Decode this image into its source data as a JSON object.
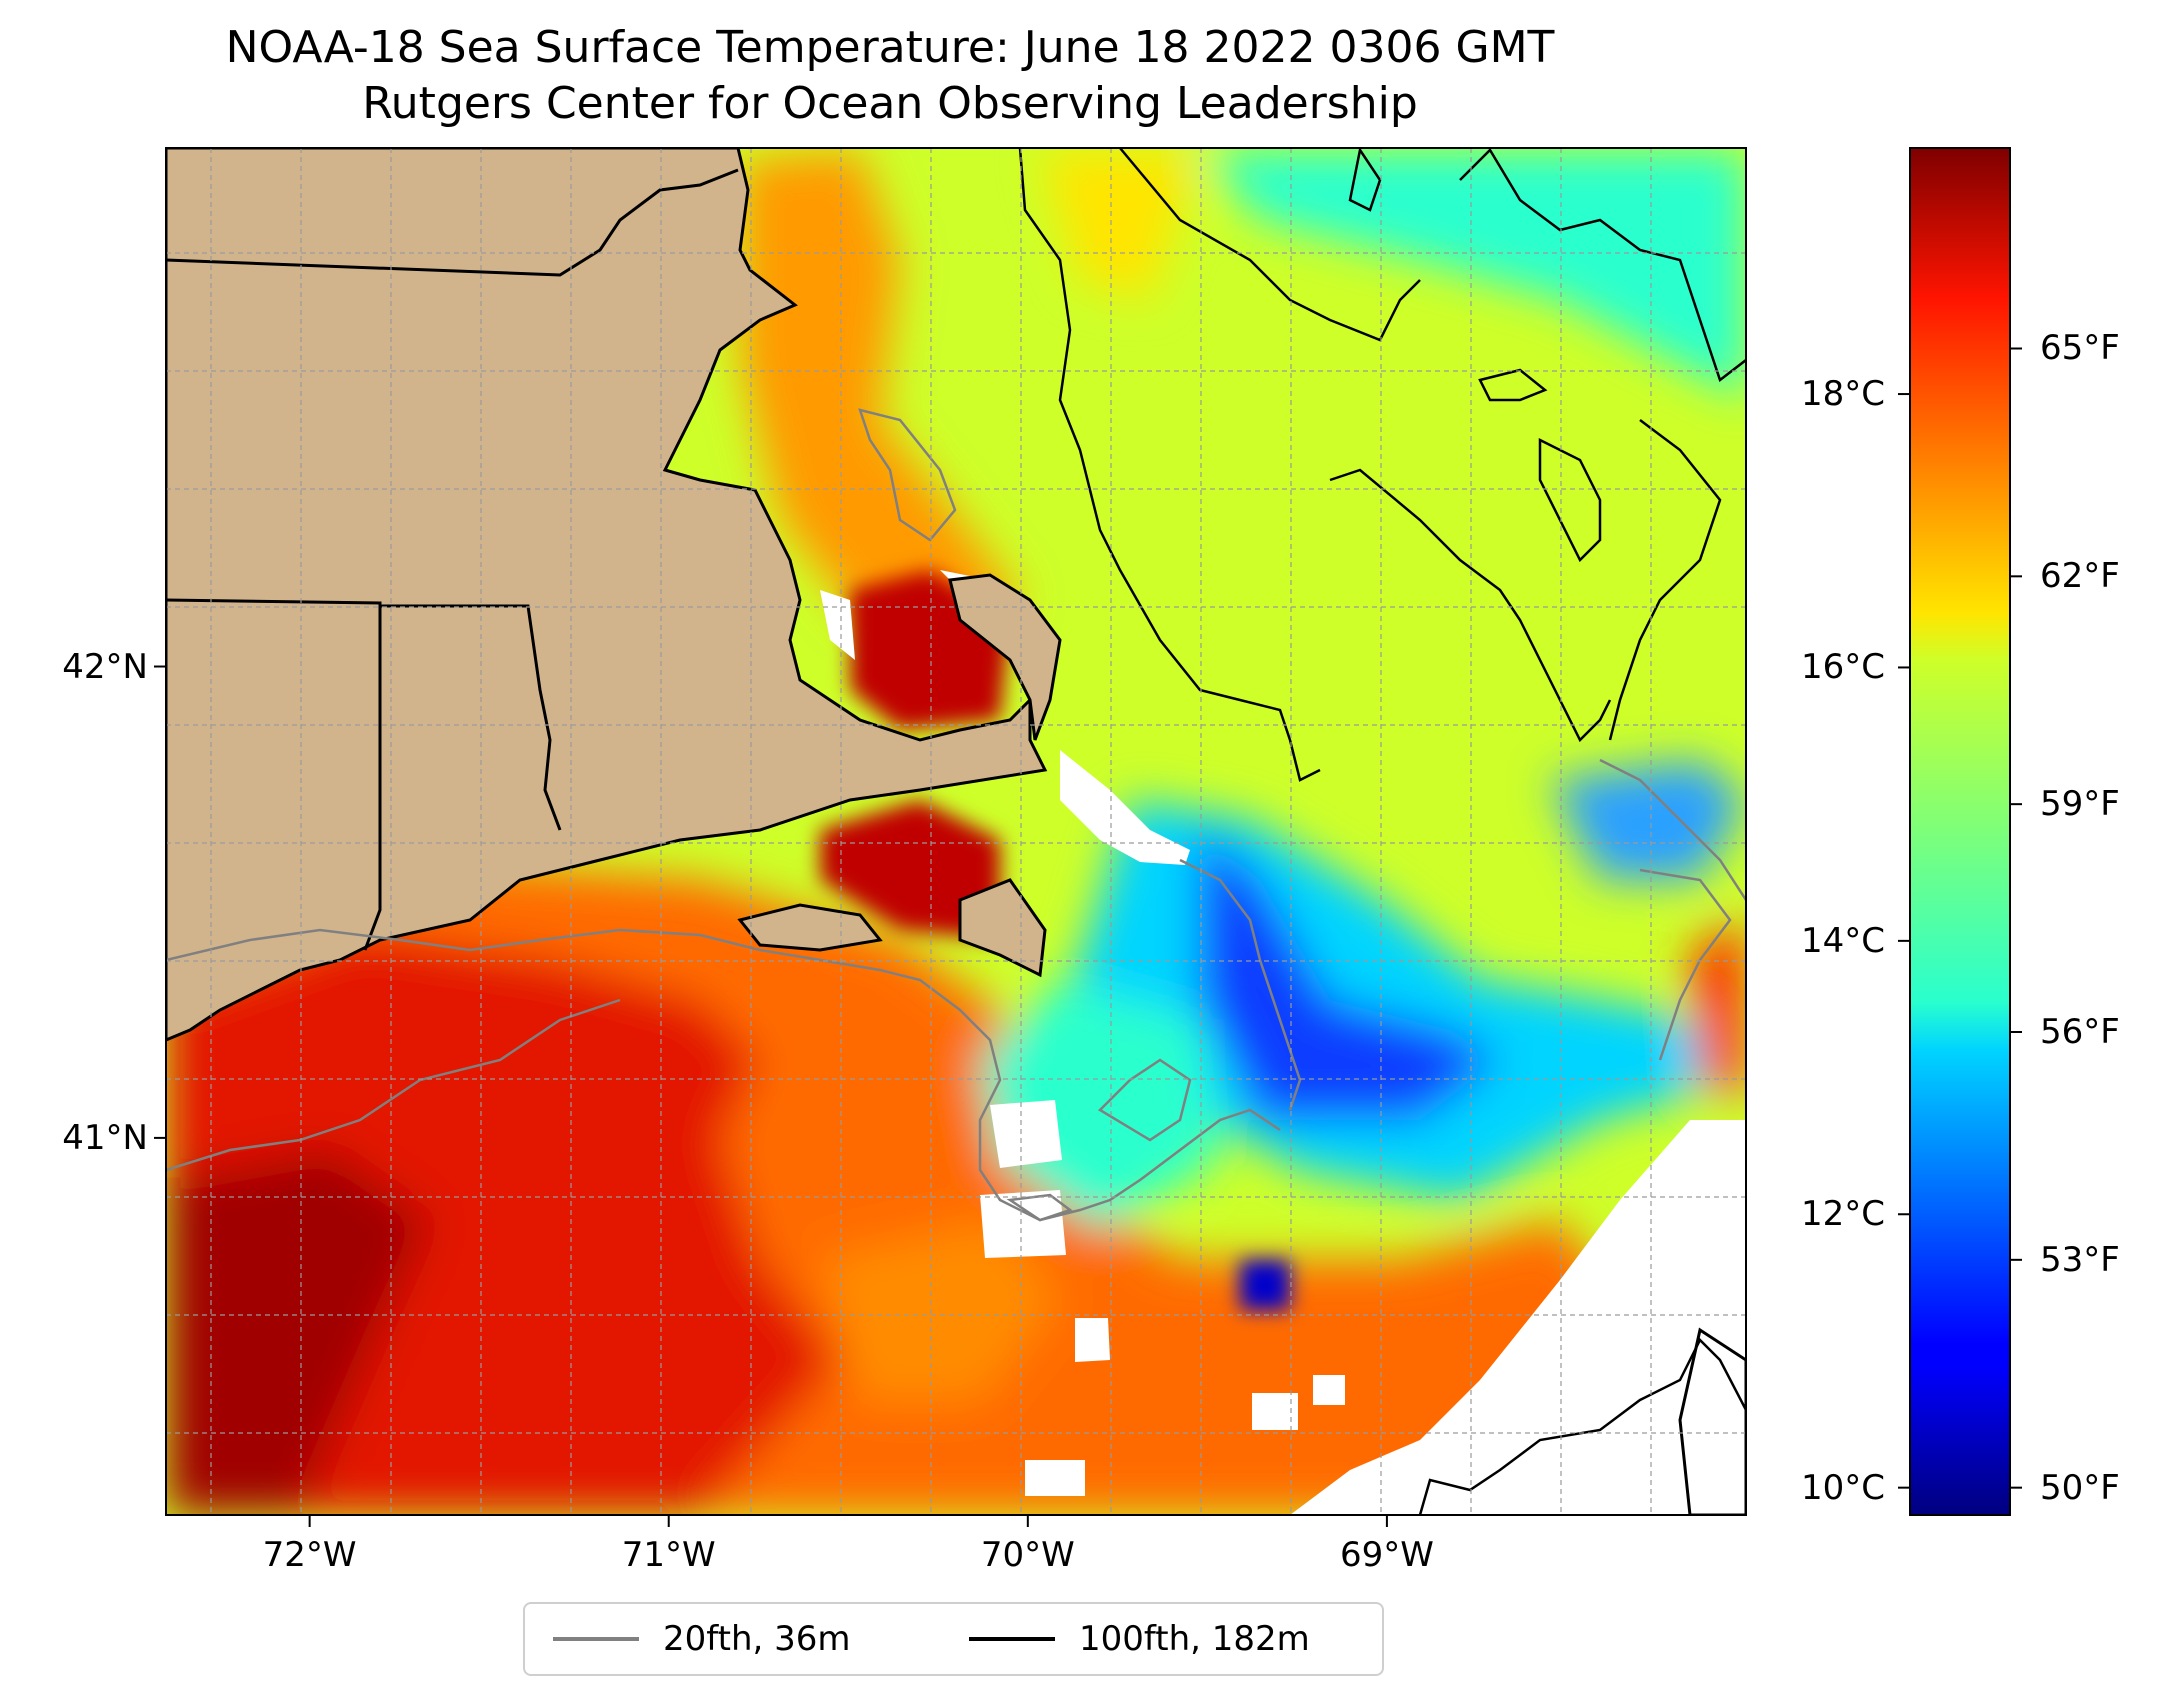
{
  "title": {
    "line1": "NOAA-18 Sea Surface Temperature: June 18 2022 0306 GMT",
    "line2": "Rutgers Center for Ocean Observing Leadership"
  },
  "map": {
    "lon_range": [
      -72.4,
      -68.0
    ],
    "lat_range": [
      40.2,
      43.1
    ],
    "land_color": "#d2b48c",
    "no_data_color": "#ffffff",
    "x_ticks": [
      {
        "lon": -72,
        "label": "72°W"
      },
      {
        "lon": -71,
        "label": "71°W"
      },
      {
        "lon": -70,
        "label": "70°W"
      },
      {
        "lon": -69,
        "label": "69°W"
      }
    ],
    "y_ticks": [
      {
        "lat": 42,
        "label": "42°N"
      },
      {
        "lat": 41,
        "label": "41°N"
      }
    ],
    "grid": true
  },
  "colorbar": {
    "colormap": "jet",
    "range_c": [
      9.8,
      19.8
    ],
    "celsius_labels": [
      {
        "c": 10,
        "label": "10°C"
      },
      {
        "c": 12,
        "label": "12°C"
      },
      {
        "c": 14,
        "label": "14°C"
      },
      {
        "c": 16,
        "label": "16°C"
      },
      {
        "c": 18,
        "label": "18°C"
      }
    ],
    "fahrenheit_labels": [
      {
        "f": 50,
        "label": "50°F"
      },
      {
        "f": 53,
        "label": "53°F"
      },
      {
        "f": 56,
        "label": "56°F"
      },
      {
        "f": 59,
        "label": "59°F"
      },
      {
        "f": 62,
        "label": "62°F"
      },
      {
        "f": 65,
        "label": "65°F"
      }
    ]
  },
  "legend": {
    "items": [
      {
        "label": "20fth, 36m",
        "color": "#808080"
      },
      {
        "label": "100fth, 182m",
        "color": "#000000"
      }
    ]
  }
}
